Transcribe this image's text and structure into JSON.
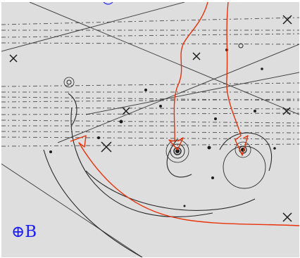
{
  "image": {
    "field_label": "⊕B",
    "colors": {
      "background": "#dcdcdc",
      "track": "#2a2a2a",
      "annotation": "#e8320a",
      "label": "#1a1aff"
    },
    "marker_shape": "x"
  }
}
